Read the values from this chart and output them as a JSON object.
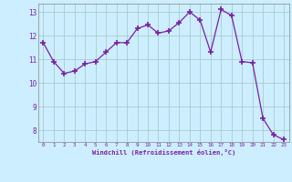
{
  "x": [
    0,
    1,
    2,
    3,
    4,
    5,
    6,
    7,
    8,
    9,
    10,
    11,
    12,
    13,
    14,
    15,
    16,
    17,
    18,
    19,
    20,
    21,
    22,
    23
  ],
  "y": [
    11.7,
    10.9,
    10.4,
    10.5,
    10.8,
    10.9,
    11.3,
    11.7,
    11.7,
    12.3,
    12.45,
    12.1,
    12.2,
    12.55,
    13.0,
    12.65,
    11.3,
    13.1,
    12.85,
    10.9,
    10.85,
    8.5,
    7.8,
    7.6
  ],
  "line_color": "#7b1fa2",
  "marker": "+",
  "marker_size": 4,
  "marker_lw": 1.2,
  "bg_color": "#cceeff",
  "grid_color": "#aacccc",
  "xlabel": "Windchill (Refroidissement éolien,°C)",
  "xlabel_color": "#7b1fa2",
  "tick_color": "#7b1fa2",
  "ylabel_ticks": [
    8,
    9,
    10,
    11,
    12,
    13
  ],
  "xlim": [
    -0.5,
    23.5
  ],
  "ylim": [
    7.5,
    13.35
  ],
  "xticks": [
    0,
    1,
    2,
    3,
    4,
    5,
    6,
    7,
    8,
    9,
    10,
    11,
    12,
    13,
    14,
    15,
    16,
    17,
    18,
    19,
    20,
    21,
    22,
    23
  ]
}
